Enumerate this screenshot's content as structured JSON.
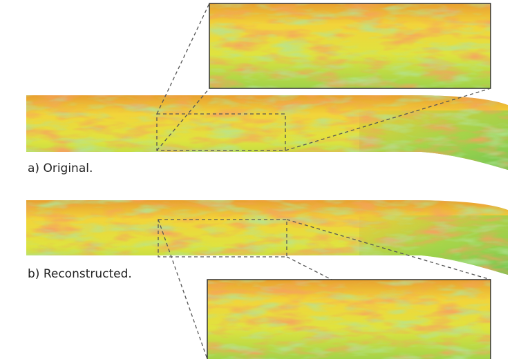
{
  "panels": [
    {
      "label": "a) Original."
    },
    {
      "label": "b) Reconstructed."
    }
  ]
}
